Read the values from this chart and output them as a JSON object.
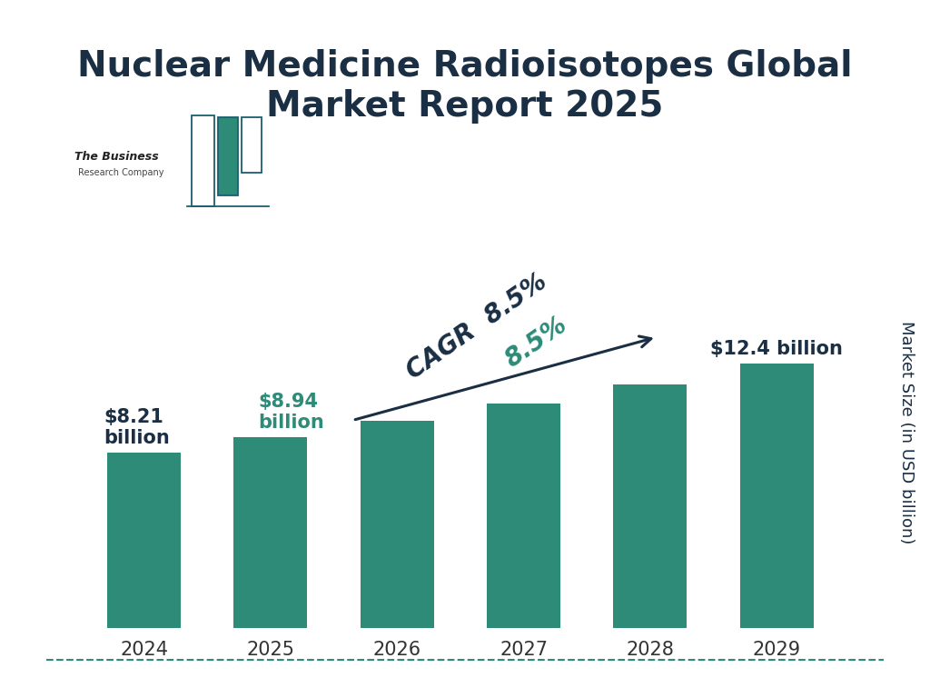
{
  "title": "Nuclear Medicine Radioisotopes Global\nMarket Report 2025",
  "title_color": "#1a2e44",
  "title_fontsize": 28,
  "categories": [
    "2024",
    "2025",
    "2026",
    "2027",
    "2028",
    "2029"
  ],
  "values": [
    8.21,
    8.94,
    9.71,
    10.54,
    11.43,
    12.4
  ],
  "bar_color": "#2d8b78",
  "ylabel": "Market Size (in USD billion)",
  "ylabel_color": "#1a2e44",
  "ylim": [
    0,
    17
  ],
  "cagr_text_label": "CAGR ",
  "cagr_pct": "8.5%",
  "cagr_dark_color": "#1a2e44",
  "cagr_teal_color": "#2d8b78",
  "label_2024": "$8.21\nbillion",
  "label_2025_line1": "$8.94",
  "label_2025_line2": "billion",
  "label_2029": "$12.4 billion",
  "label_dark_color": "#1a2e44",
  "label_teal_color": "#2d8b78",
  "background_color": "#ffffff",
  "border_color": "#2d8b78",
  "xtick_fontsize": 15,
  "logo_teal": "#2d8b78",
  "logo_dark": "#1a5f70"
}
